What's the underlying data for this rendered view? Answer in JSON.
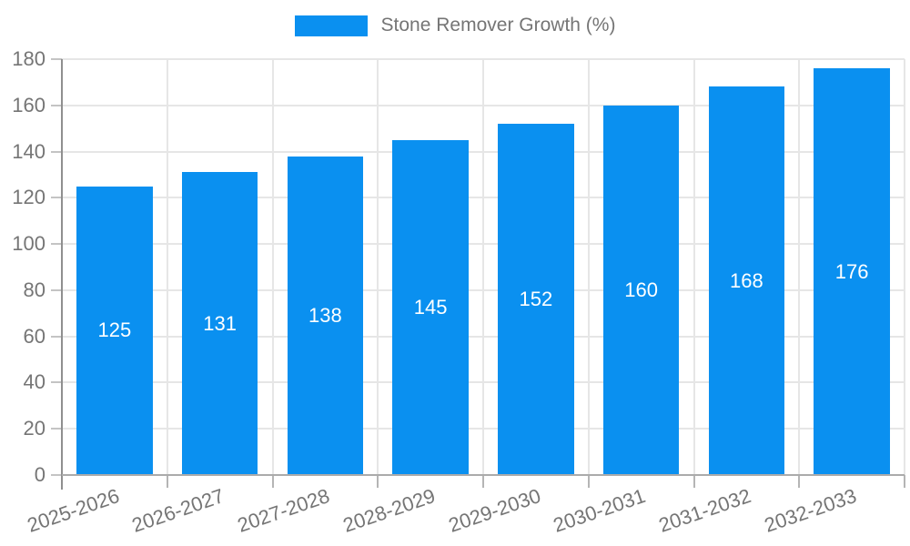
{
  "chart_data": {
    "type": "bar",
    "title": "",
    "series_label": "Stone Remover Growth (%)",
    "categories": [
      "2025-2026",
      "2026-2027",
      "2027-2028",
      "2028-2029",
      "2029-2030",
      "2030-2031",
      "2031-2032",
      "2032-2033"
    ],
    "values": [
      125,
      131,
      138,
      145,
      152,
      160,
      168,
      176
    ],
    "xlabel": "",
    "ylabel": "",
    "ylim": [
      0,
      180
    ],
    "ytick_step": 20,
    "bar_width_ratio": 0.72,
    "bar_color": "#0a90f0",
    "value_label_color": "#ffffff",
    "axis_text_color": "#757575",
    "grid": true,
    "legend_position": "top",
    "x_label_rotation_deg": -19
  }
}
